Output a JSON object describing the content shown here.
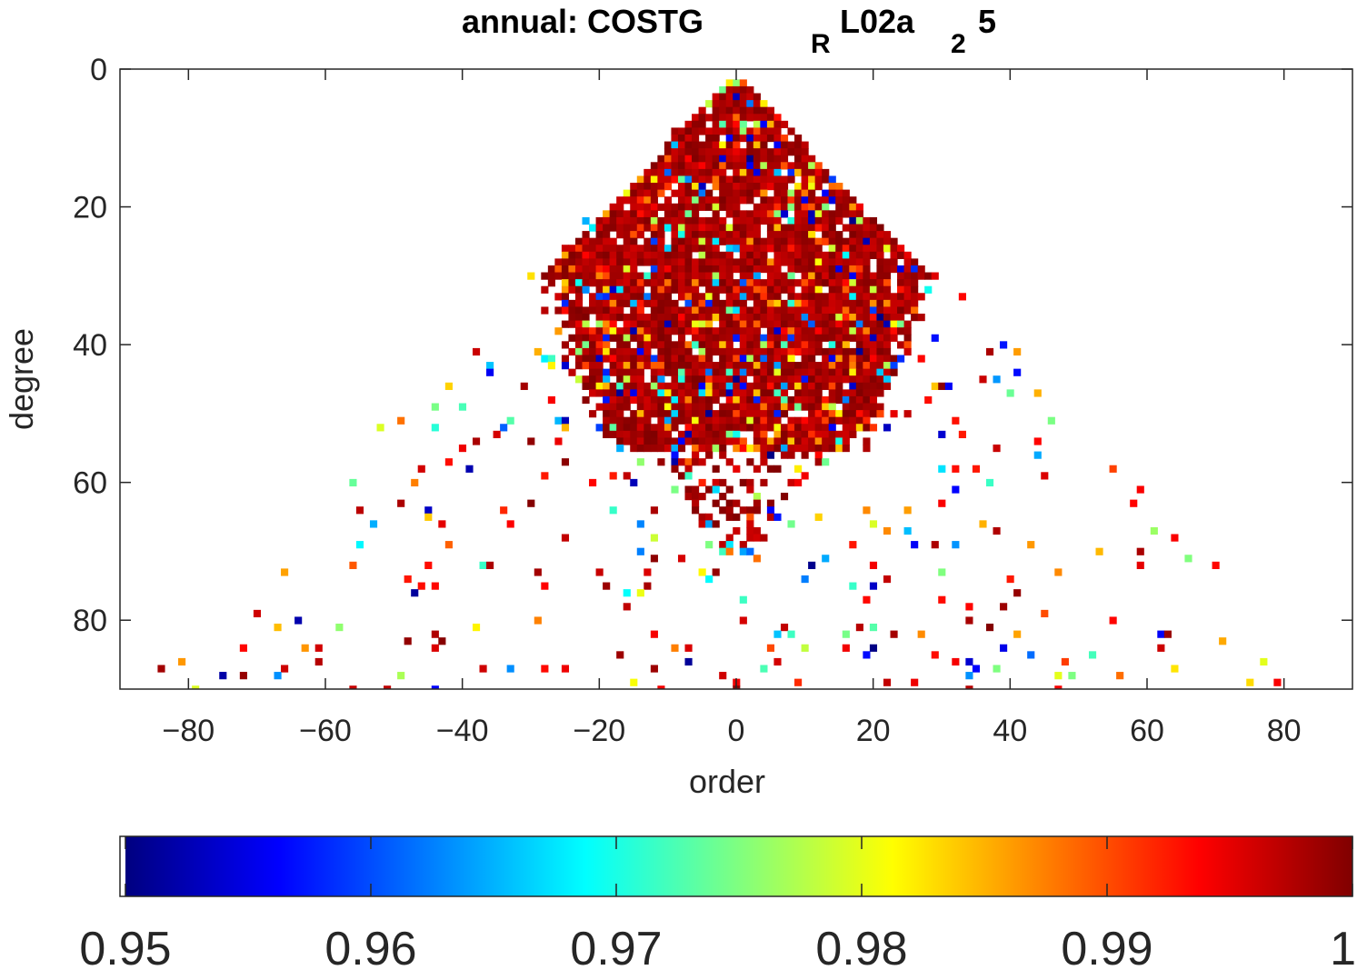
{
  "chart_data": {
    "type": "heatmap",
    "title": {
      "prefix": "annual: COSTG",
      "sub1": "R",
      "mid": "L02a",
      "sub2": "2",
      "suffix": "5"
    },
    "xlabel": "order",
    "ylabel": "degree",
    "xlim": [
      -90,
      90
    ],
    "ylim": [
      0,
      90
    ],
    "y_reversed": true,
    "xticks": [
      -80,
      -60,
      -40,
      -20,
      0,
      20,
      40,
      60,
      80
    ],
    "yticks": [
      0,
      20,
      40,
      60,
      80
    ],
    "grid": false,
    "colormap": "jet",
    "colorbar": {
      "orientation": "horizontal",
      "placement": "bottom",
      "range": [
        0.95,
        1
      ],
      "ticks": [
        0.95,
        0.96,
        0.97,
        0.98,
        0.99,
        1
      ],
      "tick_labels": [
        "0.95",
        "0.96",
        "0.97",
        "0.98",
        "0.99",
        "1"
      ]
    },
    "description": "Triangular field of correlation values by spherical-harmonic degree and order; dense block of values near 1 for degree < ~55 and |order| < ~30, sparse scattered cells at higher degrees.",
    "seed": 7
  }
}
